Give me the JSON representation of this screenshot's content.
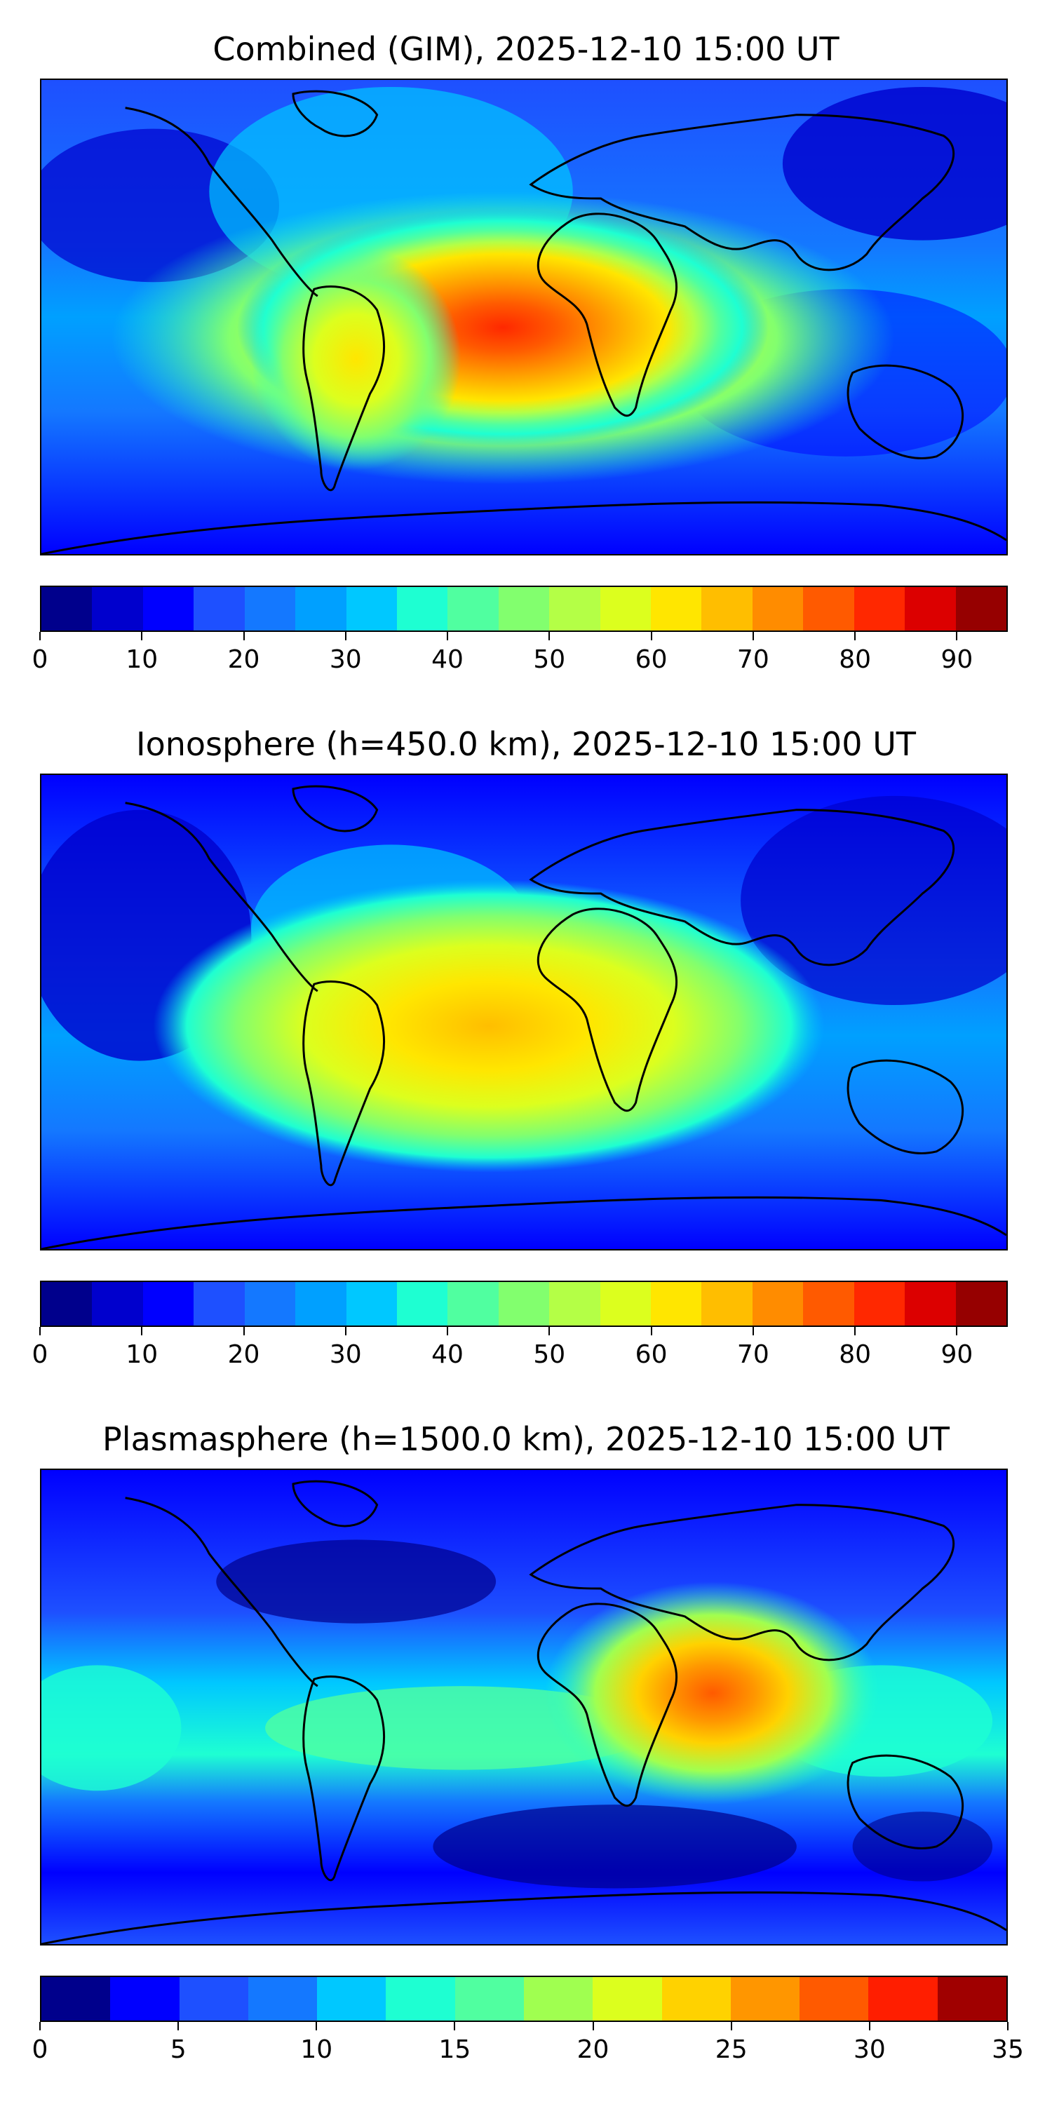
{
  "panels": [
    {
      "title": "Combined (GIM), 2025-12-10 15:00 UT",
      "colorbar": {
        "min": 0,
        "max": 95,
        "step": 5,
        "ticks": [
          0,
          10,
          20,
          30,
          40,
          50,
          60,
          70,
          80,
          90
        ],
        "colors": [
          "#00008c",
          "#0000cd",
          "#0000ff",
          "#1e50ff",
          "#1478ff",
          "#00a0ff",
          "#00c8ff",
          "#1effd2",
          "#50ffa0",
          "#82ff6e",
          "#b4ff46",
          "#dcff1e",
          "#ffe600",
          "#ffbe00",
          "#ff8c00",
          "#ff5a00",
          "#ff2800",
          "#dc0000",
          "#960000"
        ]
      },
      "hotspots": [
        {
          "lon": -10,
          "lat": 2,
          "value": 82
        },
        {
          "lon": -45,
          "lat": -10,
          "value": 62
        },
        {
          "lon": 20,
          "lat": 0,
          "value": 70
        }
      ]
    },
    {
      "title": "Ionosphere  (h=450.0 km), 2025-12-10 15:00 UT",
      "colorbar": {
        "min": 0,
        "max": 95,
        "step": 5,
        "ticks": [
          0,
          10,
          20,
          30,
          40,
          50,
          60,
          70,
          80,
          90
        ],
        "colors": [
          "#00008c",
          "#0000cd",
          "#0000ff",
          "#1e50ff",
          "#1478ff",
          "#00a0ff",
          "#00c8ff",
          "#1effd2",
          "#50ffa0",
          "#82ff6e",
          "#b4ff46",
          "#dcff1e",
          "#ffe600",
          "#ffbe00",
          "#ff8c00",
          "#ff5a00",
          "#ff2800",
          "#dc0000",
          "#960000"
        ]
      },
      "hotspots": [
        {
          "lon": -5,
          "lat": 2,
          "value": 66
        },
        {
          "lon": -45,
          "lat": -10,
          "value": 50
        },
        {
          "lon": -60,
          "lat": 28,
          "value": 40
        }
      ]
    },
    {
      "title": "Plasmasphere (h=1500.0 km), 2025-12-10 15:00 UT",
      "colorbar": {
        "min": 0,
        "max": 35,
        "step": 2.5,
        "ticks": [
          0,
          5,
          10,
          15,
          20,
          25,
          30,
          35
        ],
        "colors": [
          "#00008c",
          "#0000ff",
          "#1e50ff",
          "#1478ff",
          "#00c8ff",
          "#1effd2",
          "#50ffa0",
          "#a0ff50",
          "#dcff1e",
          "#ffd200",
          "#ff9600",
          "#ff5a00",
          "#ff1e00",
          "#a00000"
        ]
      },
      "hotspots": [
        {
          "lon": 78,
          "lat": 12,
          "value": 28
        },
        {
          "lon": 0,
          "lat": -15,
          "value": 18
        }
      ]
    }
  ]
}
